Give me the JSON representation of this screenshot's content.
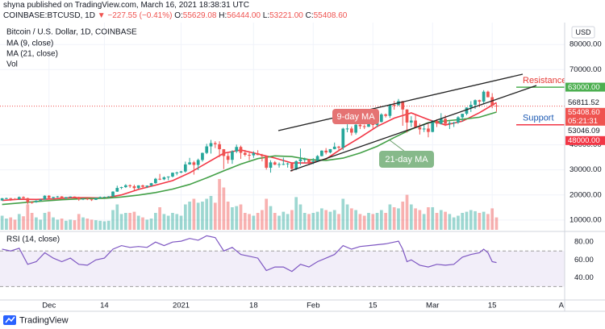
{
  "header": {
    "published": "shyna published on TradingView.com, March 16, 2021 18:38:31 UTC",
    "symbol": "COINBASE:BTCUSD, 1D",
    "change": "▼ −227.55 (−0.41%)",
    "ohlc": [
      [
        "O:",
        "55629.08"
      ],
      [
        "H:",
        "56444.00"
      ],
      [
        "L:",
        "53221.00"
      ],
      [
        "C:",
        "55408.60"
      ]
    ],
    "currency": "USD",
    "brand": "TradingView"
  },
  "chart_data": [
    {
      "type": "candlestick",
      "title": "Bitcoin / U.S. Dollar, 1D, COINBASE",
      "xlim": [
        -0.5,
        132
      ],
      "xticks": [
        {
          "value": 11,
          "label": "Dec"
        },
        {
          "value": 24,
          "label": "14"
        },
        {
          "value": 42,
          "label": "2021"
        },
        {
          "value": 59,
          "label": "18"
        },
        {
          "value": 73,
          "label": "Feb"
        },
        {
          "value": 87,
          "label": "15"
        },
        {
          "value": 101,
          "label": "Mar"
        },
        {
          "value": 115,
          "label": "15"
        },
        {
          "value": 132,
          "label": "Apr"
        }
      ],
      "ylim": [
        6100,
        88750
      ],
      "yticks": [
        {
          "value": 10000,
          "label": "10000.00"
        },
        {
          "value": 20000,
          "label": "20000.00"
        },
        {
          "value": 30000,
          "label": "30000.00"
        },
        {
          "value": 40000,
          "label": "40000.00"
        },
        {
          "value": 70000,
          "label": "70000.00"
        },
        {
          "value": 80000,
          "label": "80000.00"
        }
      ],
      "grid": true,
      "up_color": "#26a69a",
      "down_color": "#ef5350",
      "candles": [
        [
          17800,
          18800,
          17750,
          18680
        ],
        [
          18680,
          18950,
          18350,
          18720
        ],
        [
          18720,
          18800,
          17650,
          18420
        ],
        [
          18420,
          18750,
          18000,
          18370
        ],
        [
          18370,
          19400,
          18100,
          19160
        ],
        [
          19160,
          19480,
          18550,
          18720
        ],
        [
          18720,
          18900,
          16300,
          17150
        ],
        [
          17150,
          17450,
          16500,
          17140
        ],
        [
          17140,
          17900,
          16900,
          17720
        ],
        [
          17720,
          18350,
          17550,
          18180
        ],
        [
          18180,
          19850,
          18150,
          19700
        ],
        [
          19700,
          19920,
          18300,
          18790
        ],
        [
          18790,
          19300,
          18350,
          19220
        ],
        [
          19220,
          19600,
          18900,
          19440
        ],
        [
          19440,
          19520,
          18600,
          18650
        ],
        [
          18650,
          19180,
          18550,
          19150
        ],
        [
          19150,
          19420,
          18900,
          19360
        ],
        [
          19360,
          19400,
          18900,
          19170
        ],
        [
          19170,
          19300,
          17650,
          18320
        ],
        [
          18320,
          18650,
          17950,
          18550
        ],
        [
          18550,
          18600,
          17950,
          18250
        ],
        [
          18250,
          18300,
          17600,
          18040
        ],
        [
          18040,
          18950,
          18000,
          18800
        ],
        [
          18800,
          19400,
          18750,
          19170
        ],
        [
          19170,
          19350,
          19000,
          19270
        ],
        [
          19270,
          19550,
          19050,
          19430
        ],
        [
          19430,
          21500,
          19300,
          21330
        ],
        [
          21330,
          23700,
          21250,
          22800
        ],
        [
          22800,
          23300,
          22300,
          23130
        ],
        [
          23130,
          24300,
          22800,
          23860
        ],
        [
          23860,
          24200,
          22800,
          23480
        ],
        [
          23480,
          24100,
          21900,
          22740
        ],
        [
          22740,
          23850,
          22400,
          23820
        ],
        [
          23820,
          24100,
          22700,
          23250
        ],
        [
          23250,
          23800,
          22750,
          23720
        ],
        [
          23720,
          24800,
          23500,
          24700
        ],
        [
          24700,
          26800,
          24500,
          26450
        ],
        [
          26450,
          28400,
          25900,
          26240
        ],
        [
          26240,
          27400,
          25900,
          27040
        ],
        [
          27040,
          27400,
          25900,
          27360
        ],
        [
          27360,
          28950,
          27000,
          28880
        ],
        [
          28880,
          29300,
          27850,
          28950
        ],
        [
          28950,
          29600,
          28700,
          29370
        ],
        [
          29370,
          33300,
          28950,
          32190
        ],
        [
          32190,
          34800,
          32000,
          33000
        ],
        [
          33000,
          33600,
          28100,
          31990
        ],
        [
          31990,
          34500,
          29900,
          33950
        ],
        [
          33950,
          36900,
          33300,
          36770
        ],
        [
          36770,
          40400,
          36300,
          39370
        ],
        [
          39370,
          41950,
          36500,
          40670
        ],
        [
          40670,
          41400,
          38700,
          40240
        ],
        [
          40240,
          41400,
          35100,
          38240
        ],
        [
          38240,
          38300,
          30300,
          35540
        ],
        [
          35540,
          36600,
          32500,
          34010
        ],
        [
          34010,
          37850,
          32400,
          37370
        ],
        [
          37370,
          40100,
          36700,
          39150
        ],
        [
          39150,
          39700,
          34400,
          36820
        ],
        [
          36820,
          37950,
          35400,
          36010
        ],
        [
          36010,
          36850,
          33900,
          35820
        ],
        [
          35820,
          37400,
          34800,
          36630
        ],
        [
          36630,
          37850,
          35900,
          35910
        ],
        [
          35910,
          36400,
          33400,
          35470
        ],
        [
          35470,
          35600,
          30100,
          30850
        ],
        [
          30850,
          33850,
          28900,
          33000
        ],
        [
          33000,
          33500,
          31900,
          32080
        ],
        [
          32080,
          32950,
          30900,
          32280
        ],
        [
          32280,
          34900,
          31900,
          32370
        ],
        [
          32370,
          32900,
          30900,
          32570
        ],
        [
          32570,
          32600,
          29300,
          30430
        ],
        [
          30430,
          33800,
          29900,
          33470
        ],
        [
          33470,
          38500,
          31900,
          34260
        ],
        [
          34260,
          34900,
          32900,
          34260
        ],
        [
          34260,
          34400,
          32300,
          33110
        ],
        [
          33110,
          34700,
          32300,
          33520
        ],
        [
          33520,
          35900,
          33400,
          35510
        ],
        [
          35510,
          37800,
          35400,
          37670
        ],
        [
          37670,
          38700,
          36200,
          36950
        ],
        [
          36950,
          38300,
          36600,
          38280
        ],
        [
          38280,
          40900,
          38200,
          39260
        ],
        [
          39260,
          39600,
          37400,
          38870
        ],
        [
          38870,
          46800,
          37900,
          46450
        ],
        [
          46450,
          48200,
          45000,
          46500
        ],
        [
          46500,
          47300,
          43700,
          44850
        ],
        [
          44850,
          48600,
          44100,
          48000
        ],
        [
          48000,
          48900,
          46300,
          47410
        ],
        [
          47410,
          48100,
          46300,
          47190
        ],
        [
          47190,
          49700,
          47100,
          48590
        ],
        [
          48590,
          49000,
          46300,
          47910
        ],
        [
          47910,
          50600,
          47000,
          49130
        ],
        [
          49130,
          52600,
          48900,
          52120
        ],
        [
          52120,
          52500,
          50900,
          51550
        ],
        [
          51550,
          56300,
          50700,
          55910
        ],
        [
          55910,
          57500,
          54000,
          55840
        ],
        [
          55840,
          58300,
          55500,
          57410
        ],
        [
          57410,
          57500,
          47600,
          54090
        ],
        [
          54090,
          54200,
          44900,
          48890
        ],
        [
          48890,
          51400,
          47100,
          49680
        ],
        [
          49680,
          52000,
          46700,
          47000
        ],
        [
          47000,
          48500,
          44100,
          46150
        ],
        [
          46150,
          48300,
          45100,
          46480
        ],
        [
          46480,
          48400,
          43000,
          45140
        ],
        [
          45140,
          49800,
          45000,
          49590
        ],
        [
          49590,
          50200,
          47100,
          48440
        ],
        [
          48440,
          52600,
          48100,
          50350
        ],
        [
          50350,
          51800,
          47500,
          48370
        ],
        [
          48370,
          49400,
          46300,
          48750
        ],
        [
          48750,
          49200,
          47100,
          48880
        ],
        [
          48880,
          51400,
          48400,
          50970
        ],
        [
          50970,
          52400,
          49300,
          52380
        ],
        [
          52380,
          54900,
          51800,
          54880
        ],
        [
          54880,
          57400,
          53100,
          55960
        ],
        [
          55960,
          58100,
          54300,
          57800
        ],
        [
          57800,
          58000,
          55000,
          57230
        ],
        [
          57230,
          61800,
          56100,
          61190
        ],
        [
          61190,
          61600,
          58900,
          59000
        ],
        [
          59000,
          60600,
          54600,
          55630
        ],
        [
          55629.08,
          56444,
          53221,
          55408.6
        ]
      ],
      "last_label": "55408.60",
      "countdown": "05:21:31",
      "series": [
        {
          "name": "MA (9, close)",
          "color": "#f23645",
          "x": [
            0,
            4,
            8,
            12,
            16,
            20,
            24,
            28,
            32,
            36,
            40,
            44,
            48,
            52,
            56,
            60,
            64,
            68,
            72,
            76,
            80,
            84,
            88,
            92,
            96,
            100,
            104,
            108,
            112,
            116
          ],
          "values": [
            17800,
            18300,
            18230,
            18420,
            18910,
            18900,
            18770,
            20030,
            22210,
            23910,
            25720,
            28830,
            32720,
            36640,
            37930,
            36360,
            34730,
            32770,
            32760,
            34350,
            38850,
            42950,
            47340,
            50630,
            52740,
            50080,
            47910,
            49430,
            52800,
            56811.52
          ]
        },
        {
          "name": "MA (21, close)",
          "color": "#43a047",
          "x": [
            0,
            8,
            14,
            20,
            24,
            28,
            32,
            36,
            40,
            44,
            48,
            52,
            56,
            60,
            64,
            68,
            72,
            76,
            80,
            84,
            88,
            92,
            96,
            100,
            104,
            108,
            112,
            116
          ],
          "values": [
            16200,
            17400,
            18100,
            18580,
            18660,
            19200,
            19950,
            20950,
            22350,
            24200,
            26800,
            29600,
            32300,
            34500,
            35600,
            35300,
            34100,
            33800,
            34700,
            36700,
            39400,
            42900,
            46200,
            48800,
            49500,
            50200,
            51000,
            53046.09
          ]
        }
      ],
      "volume": {
        "name": "Vol",
        "ylim": [
          0,
          100
        ],
        "values": [
          25,
          20,
          22,
          18,
          28,
          24,
          45,
          30,
          22,
          18,
          30,
          32,
          22,
          18,
          20,
          16,
          18,
          17,
          28,
          22,
          20,
          18,
          17,
          16,
          15,
          16,
          35,
          45,
          28,
          30,
          30,
          32,
          25,
          22,
          18,
          20,
          30,
          40,
          28,
          25,
          30,
          28,
          25,
          45,
          50,
          55,
          48,
          50,
          55,
          60,
          48,
          90,
          75,
          50,
          40,
          42,
          45,
          30,
          28,
          25,
          30,
          35,
          55,
          42,
          30,
          25,
          32,
          28,
          35,
          58,
          45,
          30,
          28,
          30,
          32,
          38,
          35,
          32,
          35,
          28,
          55,
          45,
          38,
          35,
          28,
          25,
          30,
          28,
          30,
          35,
          30,
          45,
          40,
          38,
          50,
          62,
          45,
          38,
          35,
          28,
          40,
          40,
          30,
          35,
          32,
          28,
          22,
          25,
          30,
          32,
          35,
          33,
          30,
          32,
          28,
          38,
          22
        ]
      },
      "levels": [
        {
          "name": "Resistance",
          "value": 63000,
          "label": "63000.00",
          "color": "#4caf50",
          "text_color": "#e53935"
        },
        {
          "name": "Support",
          "value": 48000,
          "label": "48000.00",
          "color": "#f23645",
          "text_color": "#1e5bb4"
        }
      ],
      "annotations": [
        "9-day MA",
        "21-day MA"
      ]
    },
    {
      "type": "line",
      "title": "RSI (14, close)",
      "color": "#7e57c2",
      "xlim": [
        -0.5,
        132
      ],
      "ylim": [
        15,
        91
      ],
      "yticks": [
        {
          "value": 40,
          "label": "40.00"
        },
        {
          "value": 60,
          "label": "60.00"
        },
        {
          "value": 80,
          "label": "80.00"
        }
      ],
      "bands": [
        30,
        70
      ],
      "x": [
        0,
        2,
        4,
        6,
        8,
        10,
        12,
        14,
        16,
        18,
        20,
        22,
        24,
        26,
        28,
        30,
        32,
        34,
        36,
        38,
        40,
        42,
        44,
        46,
        48,
        50,
        52,
        54,
        56,
        58,
        60,
        62,
        64,
        66,
        68,
        70,
        72,
        74,
        76,
        78,
        80,
        82,
        84,
        86,
        88,
        90,
        92,
        93,
        94,
        95,
        96,
        98,
        100,
        102,
        104,
        106,
        108,
        110,
        112,
        113,
        114,
        115,
        116
      ],
      "values": [
        72,
        70,
        73,
        55,
        58,
        68,
        62,
        58,
        62,
        55,
        54,
        60,
        62,
        72,
        76,
        74,
        75,
        74,
        80,
        76,
        80,
        81,
        84,
        82,
        87,
        85,
        70,
        74,
        66,
        64,
        62,
        48,
        52,
        52,
        47,
        55,
        52,
        58,
        62,
        66,
        76,
        72,
        75,
        76,
        77,
        78,
        80,
        81,
        72,
        58,
        60,
        54,
        52,
        55,
        54,
        55,
        63,
        66,
        68,
        72,
        68,
        58,
        57
      ]
    }
  ]
}
